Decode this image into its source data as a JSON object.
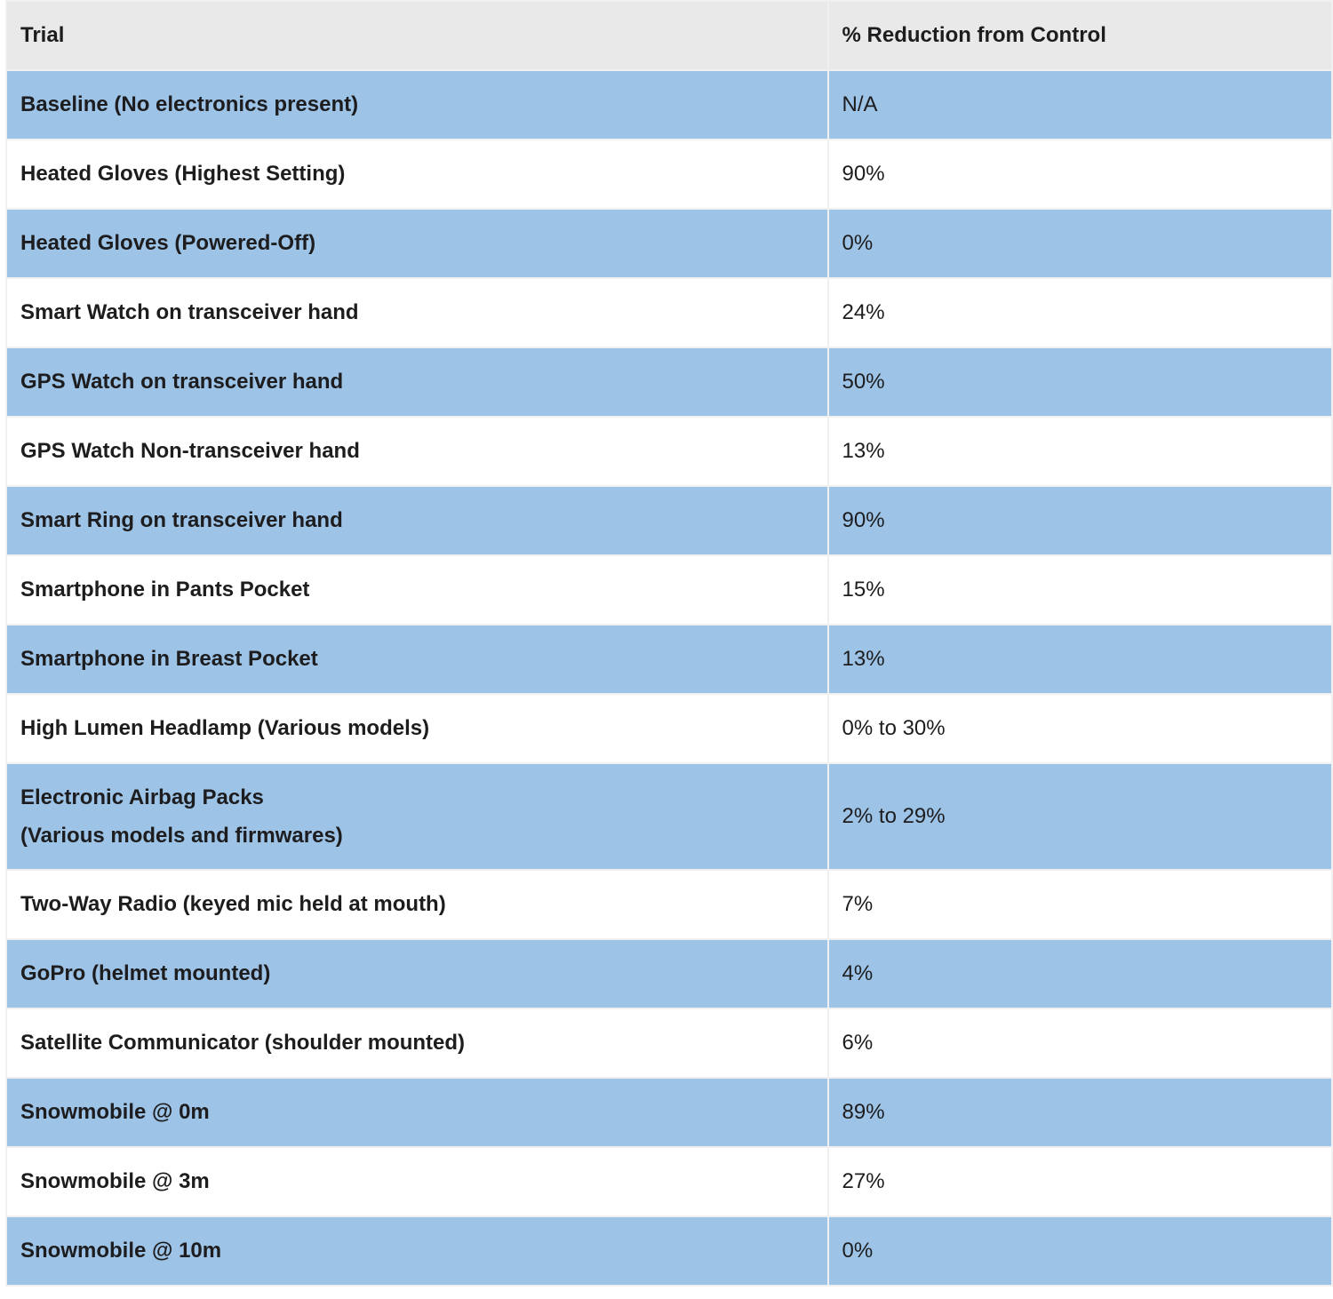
{
  "table": {
    "columns": {
      "trial": "Trial",
      "reduction": "% Reduction from Control"
    },
    "rows": [
      {
        "trial": "Baseline (No electronics present)",
        "reduction": "N/A"
      },
      {
        "trial": "Heated Gloves (Highest Setting)",
        "reduction": "90%"
      },
      {
        "trial": "Heated Gloves (Powered-Off)",
        "reduction": "0%"
      },
      {
        "trial": "Smart Watch on transceiver hand",
        "reduction": "24%"
      },
      {
        "trial": "GPS Watch on transceiver hand",
        "reduction": "50%"
      },
      {
        "trial": "GPS Watch Non-transceiver hand",
        "reduction": "13%"
      },
      {
        "trial": "Smart Ring on transceiver hand",
        "reduction": "90%"
      },
      {
        "trial": "Smartphone in Pants Pocket",
        "reduction": "15%"
      },
      {
        "trial": "Smartphone in Breast Pocket",
        "reduction": "13%"
      },
      {
        "trial": "High Lumen Headlamp (Various models)",
        "reduction": "0% to 30%"
      },
      {
        "trial": "Electronic Airbag Packs",
        "trial_line2": "(Various models and firmwares)",
        "reduction": "2% to 29%"
      },
      {
        "trial": "Two-Way Radio (keyed mic held at mouth)",
        "reduction": "7%"
      },
      {
        "trial": "GoPro (helmet mounted)",
        "reduction": "4%"
      },
      {
        "trial": "Satellite Communicator (shoulder mounted)",
        "reduction": "6%"
      },
      {
        "trial": "Snowmobile @ 0m",
        "reduction": "89%"
      },
      {
        "trial": "Snowmobile @ 3m",
        "reduction": "27%"
      },
      {
        "trial": "Snowmobile @ 10m",
        "reduction": "0%"
      }
    ],
    "colors": {
      "header_bg": "#e9e9ea",
      "row_blue": "#9dc3e6",
      "row_white": "#ffffff",
      "text": "#1d1d1f"
    }
  }
}
